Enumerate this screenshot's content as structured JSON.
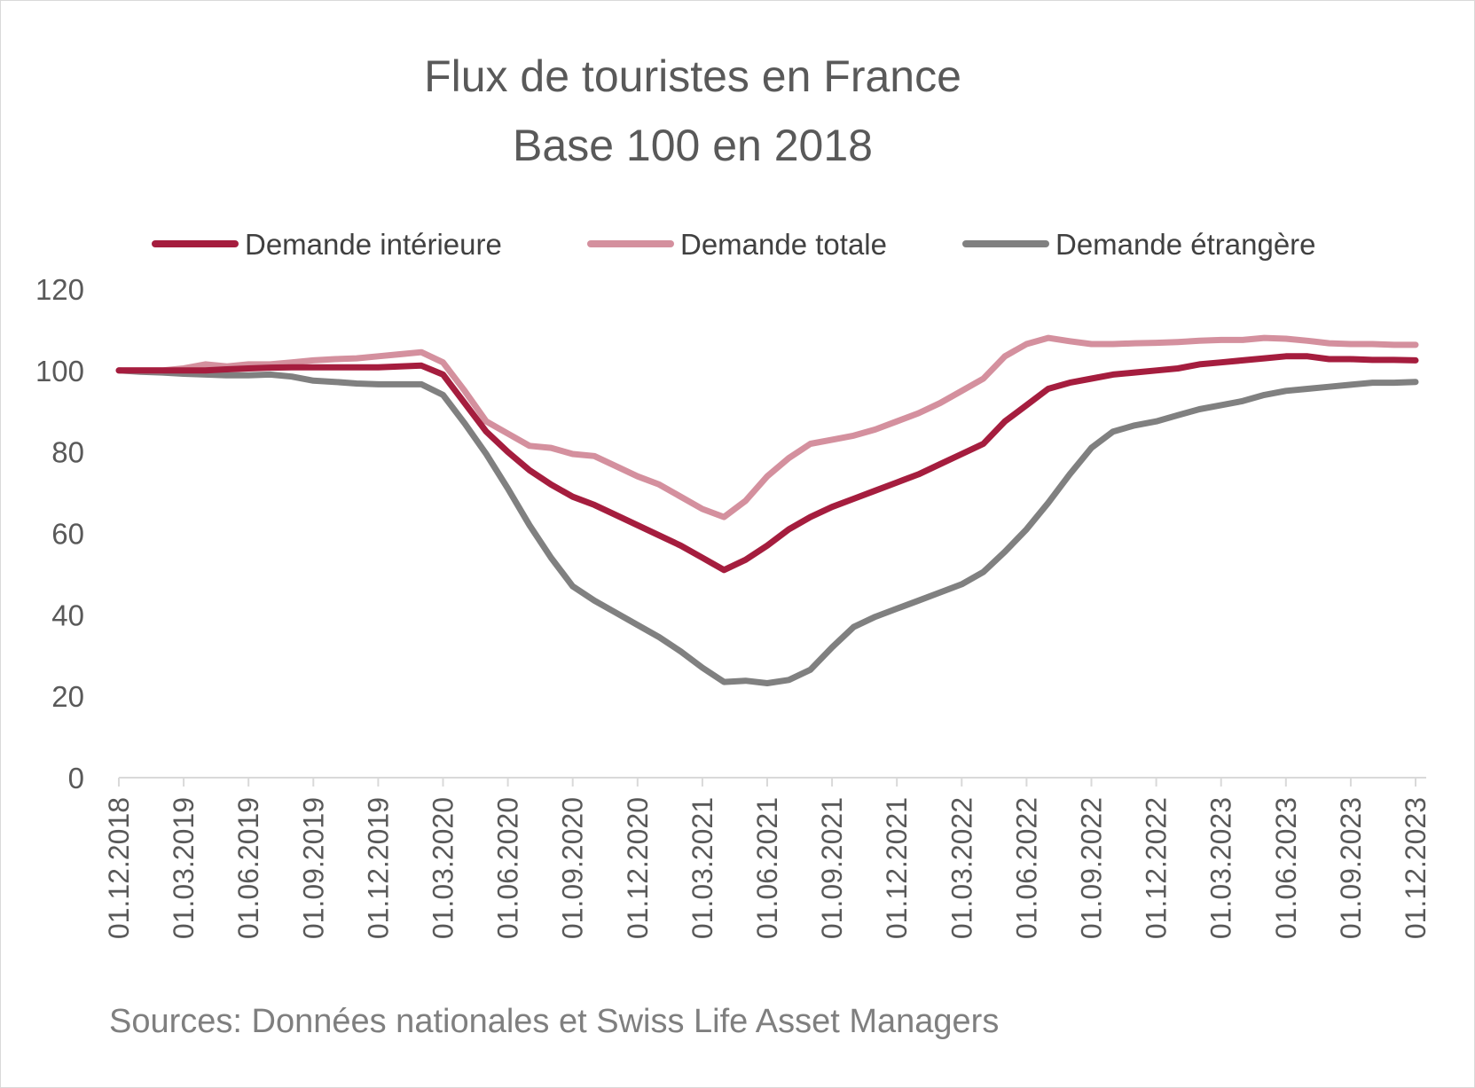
{
  "chart_data": {
    "type": "line",
    "title": [
      "Flux de touristes en France",
      "Base 100 en 2018"
    ],
    "xlabel": "",
    "ylabel": "",
    "ylim": [
      0,
      120
    ],
    "yticks": [
      0,
      20,
      40,
      60,
      80,
      100,
      120
    ],
    "xtick_labels": [
      "01.12.2018",
      "01.03.2019",
      "01.06.2019",
      "01.09.2019",
      "01.12.2019",
      "01.03.2020",
      "01.06.2020",
      "01.09.2020",
      "01.12.2020",
      "01.03.2021",
      "01.06.2021",
      "01.09.2021",
      "01.12.2021",
      "01.03.2022",
      "01.06.2022",
      "01.09.2022",
      "01.12.2022",
      "01.03.2023",
      "01.06.2023",
      "01.09.2023",
      "01.12.2023"
    ],
    "x": [
      "2018-12",
      "2019-01",
      "2019-02",
      "2019-03",
      "2019-04",
      "2019-05",
      "2019-06",
      "2019-07",
      "2019-08",
      "2019-09",
      "2019-10",
      "2019-11",
      "2019-12",
      "2020-01",
      "2020-02",
      "2020-03",
      "2020-04",
      "2020-05",
      "2020-06",
      "2020-07",
      "2020-08",
      "2020-09",
      "2020-10",
      "2020-11",
      "2020-12",
      "2021-01",
      "2021-02",
      "2021-03",
      "2021-04",
      "2021-05",
      "2021-06",
      "2021-07",
      "2021-08",
      "2021-09",
      "2021-10",
      "2021-11",
      "2021-12",
      "2022-01",
      "2022-02",
      "2022-03",
      "2022-04",
      "2022-05",
      "2022-06",
      "2022-07",
      "2022-08",
      "2022-09",
      "2022-10",
      "2022-11",
      "2022-12",
      "2023-01",
      "2023-02",
      "2023-03",
      "2023-04",
      "2023-05",
      "2023-06",
      "2023-07",
      "2023-08",
      "2023-09",
      "2023-10",
      "2023-11",
      "2023-12"
    ],
    "grid": false,
    "legend_position": "top",
    "series": [
      {
        "name": "Demande intérieure",
        "color": "#a51d3e",
        "values": [
          100,
          100,
          100,
          100,
          100,
          100.3,
          100.5,
          100.7,
          100.8,
          100.8,
          100.8,
          100.8,
          100.8,
          101,
          101.2,
          99,
          92,
          85,
          80,
          75.5,
          72,
          69,
          67,
          64.5,
          62,
          59.5,
          57,
          54,
          51,
          53.5,
          57,
          61,
          64,
          66.5,
          68.5,
          70.5,
          72.5,
          74.5,
          77,
          79.5,
          82,
          87.5,
          91.5,
          95.5,
          97,
          98,
          99,
          99.5,
          100,
          100.5,
          101.5,
          102,
          102.5,
          103,
          103.5,
          103.5,
          102.8,
          102.8,
          102.6,
          102.6,
          102.5
        ]
      },
      {
        "name": "Demande totale",
        "color": "#d4909e",
        "values": [
          100,
          100,
          100,
          100.5,
          101.5,
          101,
          101.5,
          101.5,
          102,
          102.5,
          102.8,
          103,
          103.5,
          104,
          104.5,
          102,
          95,
          87.5,
          84.5,
          81.5,
          81,
          79.5,
          79,
          76.5,
          74,
          72,
          69,
          66,
          64,
          68,
          74,
          78.5,
          82,
          83,
          84,
          85.5,
          87.5,
          89.5,
          92,
          95,
          98,
          103.5,
          106.5,
          108,
          107.2,
          106.5,
          106.5,
          106.7,
          106.8,
          107,
          107.3,
          107.5,
          107.5,
          108,
          107.8,
          107.3,
          106.7,
          106.5,
          106.5,
          106.3,
          106.3
        ]
      },
      {
        "name": "Demande étrangère",
        "color": "#808080",
        "values": [
          100,
          99.7,
          99.5,
          99.2,
          99,
          98.8,
          98.8,
          99,
          98.5,
          97.5,
          97.2,
          96.8,
          96.6,
          96.6,
          96.6,
          94,
          87,
          79.5,
          71,
          62,
          54,
          47,
          43.5,
          40.5,
          37.5,
          34.5,
          31,
          27,
          23.5,
          23.8,
          23.2,
          24,
          26.5,
          32,
          37,
          39.5,
          41.5,
          43.5,
          45.5,
          47.5,
          50.5,
          55.5,
          61,
          67.5,
          74.5,
          81,
          85,
          86.5,
          87.5,
          89,
          90.5,
          91.5,
          92.5,
          94,
          95,
          95.5,
          96,
          96.5,
          97,
          97,
          97.2
        ]
      }
    ],
    "source_note": "Sources: Données nationales et Swiss Life Asset Managers"
  }
}
